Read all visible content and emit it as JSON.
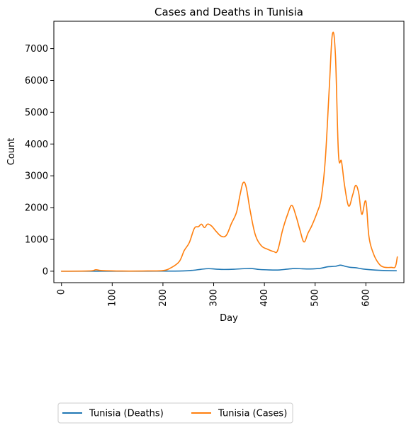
{
  "chart_data": {
    "type": "line",
    "title": "Cases and Deaths in Tunisia",
    "xlabel": "Day",
    "ylabel": "Count",
    "xlim": [
      -15,
      675
    ],
    "ylim": [
      -360,
      7860
    ],
    "xticks": [
      0,
      100,
      200,
      300,
      400,
      500,
      600
    ],
    "yticks": [
      0,
      1000,
      2000,
      3000,
      4000,
      5000,
      6000,
      7000
    ],
    "grid": false,
    "legend_placement": "below plot, left, two columns",
    "series": [
      {
        "name": "Tunisia (Deaths)",
        "color": "#1f77b4",
        "points": [
          [
            0,
            0
          ],
          [
            60,
            1
          ],
          [
            120,
            1
          ],
          [
            200,
            2
          ],
          [
            240,
            8
          ],
          [
            260,
            30
          ],
          [
            275,
            60
          ],
          [
            290,
            80
          ],
          [
            305,
            65
          ],
          [
            320,
            55
          ],
          [
            340,
            62
          ],
          [
            360,
            80
          ],
          [
            375,
            85
          ],
          [
            390,
            55
          ],
          [
            410,
            40
          ],
          [
            430,
            40
          ],
          [
            445,
            65
          ],
          [
            460,
            85
          ],
          [
            475,
            75
          ],
          [
            490,
            70
          ],
          [
            510,
            90
          ],
          [
            525,
            140
          ],
          [
            540,
            155
          ],
          [
            550,
            190
          ],
          [
            560,
            150
          ],
          [
            570,
            120
          ],
          [
            580,
            110
          ],
          [
            590,
            80
          ],
          [
            600,
            60
          ],
          [
            620,
            35
          ],
          [
            640,
            20
          ],
          [
            660,
            15
          ]
        ]
      },
      {
        "name": "Tunisia (Cases)",
        "color": "#ff7f0e",
        "points": [
          [
            0,
            0
          ],
          [
            55,
            8
          ],
          [
            68,
            45
          ],
          [
            80,
            20
          ],
          [
            120,
            5
          ],
          [
            170,
            8
          ],
          [
            200,
            20
          ],
          [
            215,
            100
          ],
          [
            232,
            300
          ],
          [
            242,
            650
          ],
          [
            252,
            900
          ],
          [
            262,
            1350
          ],
          [
            270,
            1400
          ],
          [
            276,
            1480
          ],
          [
            282,
            1370
          ],
          [
            288,
            1480
          ],
          [
            296,
            1420
          ],
          [
            305,
            1250
          ],
          [
            315,
            1100
          ],
          [
            325,
            1130
          ],
          [
            335,
            1500
          ],
          [
            345,
            1850
          ],
          [
            352,
            2400
          ],
          [
            358,
            2780
          ],
          [
            364,
            2650
          ],
          [
            372,
            1900
          ],
          [
            382,
            1150
          ],
          [
            394,
            800
          ],
          [
            405,
            700
          ],
          [
            418,
            620
          ],
          [
            426,
            650
          ],
          [
            436,
            1300
          ],
          [
            446,
            1800
          ],
          [
            454,
            2070
          ],
          [
            462,
            1750
          ],
          [
            470,
            1300
          ],
          [
            478,
            920
          ],
          [
            486,
            1200
          ],
          [
            494,
            1450
          ],
          [
            504,
            1850
          ],
          [
            512,
            2300
          ],
          [
            520,
            3500
          ],
          [
            528,
            5800
          ],
          [
            534,
            7450
          ],
          [
            540,
            6800
          ],
          [
            546,
            3700
          ],
          [
            552,
            3450
          ],
          [
            558,
            2700
          ],
          [
            566,
            2050
          ],
          [
            574,
            2400
          ],
          [
            580,
            2700
          ],
          [
            586,
            2450
          ],
          [
            592,
            1790
          ],
          [
            600,
            2200
          ],
          [
            606,
            1100
          ],
          [
            615,
            550
          ],
          [
            625,
            250
          ],
          [
            635,
            130
          ],
          [
            650,
            120
          ],
          [
            658,
            140
          ],
          [
            662,
            450
          ]
        ]
      }
    ]
  }
}
